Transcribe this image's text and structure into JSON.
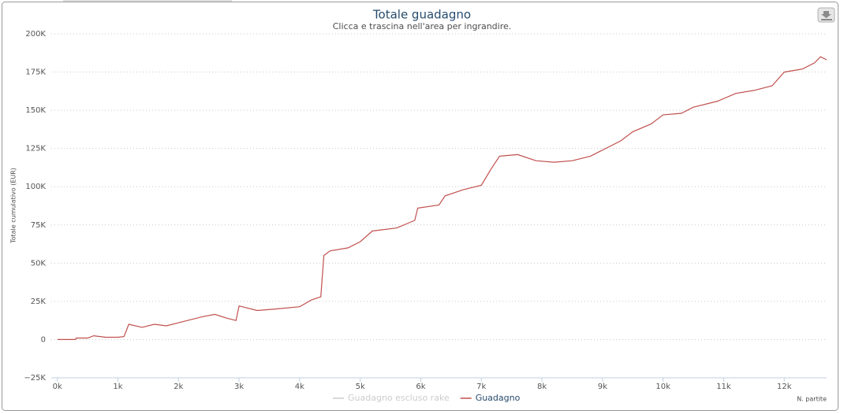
{
  "chart_data": {
    "type": "line",
    "title": "Totale guadagno",
    "subtitle": "Clicca e trascina nell'area per ingrandire.",
    "y_label": "Totale cumulativo (EUR)",
    "x_label": "N. partite",
    "x": [
      0,
      300,
      310,
      500,
      600,
      800,
      1000,
      1100,
      1180,
      1400,
      1600,
      1800,
      2000,
      2200,
      2400,
      2600,
      2800,
      2950,
      3000,
      3300,
      3600,
      4000,
      4200,
      4350,
      4400,
      4500,
      4800,
      5000,
      5200,
      5600,
      5900,
      5950,
      6300,
      6400,
      6700,
      7000,
      7150,
      7300,
      7600,
      7900,
      8200,
      8500,
      8800,
      9000,
      9300,
      9500,
      9800,
      10000,
      10300,
      10500,
      10900,
      11200,
      11500,
      11800,
      12000,
      12300,
      12500,
      12600,
      12700
    ],
    "series": [
      {
        "name": "Guadagno escluso rake",
        "color": "#cccccc",
        "visible": false,
        "values": [
          null,
          null,
          null,
          null,
          null,
          null,
          null,
          null,
          null,
          null,
          null,
          null,
          null,
          null,
          null,
          null,
          null,
          null,
          null,
          null,
          null,
          null,
          null,
          null,
          null,
          null,
          null,
          null,
          null,
          null,
          null,
          null,
          null,
          null,
          null,
          null,
          null,
          null,
          null,
          null,
          null,
          null,
          null,
          null,
          null,
          null,
          null,
          null,
          null,
          null,
          null,
          null,
          null,
          null,
          null,
          null,
          null,
          null,
          null
        ]
      },
      {
        "name": "Guadagno",
        "color": "#c0504d",
        "visible": true,
        "values": [
          0,
          0,
          1000,
          1000,
          2500,
          1500,
          1500,
          2000,
          10000,
          8000,
          10000,
          9000,
          11000,
          13000,
          15000,
          16500,
          14000,
          12500,
          22000,
          19000,
          20000,
          21500,
          26000,
          28000,
          55000,
          58000,
          60000,
          64000,
          71000,
          73000,
          78000,
          86000,
          88000,
          94000,
          98000,
          101000,
          111000,
          120000,
          121000,
          117000,
          116000,
          117000,
          120000,
          124000,
          130000,
          136000,
          141000,
          147000,
          148000,
          152000,
          156000,
          161000,
          163000,
          166000,
          175000,
          177000,
          181000,
          185000,
          183000
        ]
      }
    ],
    "xlim": [
      -100,
      12700
    ],
    "ylim": [
      -25000,
      200000
    ],
    "xticks": [
      {
        "value": 0,
        "label": "0k"
      },
      {
        "value": 1000,
        "label": "1k"
      },
      {
        "value": 2000,
        "label": "2k"
      },
      {
        "value": 3000,
        "label": "3k"
      },
      {
        "value": 4000,
        "label": "4k"
      },
      {
        "value": 5000,
        "label": "5k"
      },
      {
        "value": 6000,
        "label": "6k"
      },
      {
        "value": 7000,
        "label": "7k"
      },
      {
        "value": 8000,
        "label": "8k"
      },
      {
        "value": 9000,
        "label": "9k"
      },
      {
        "value": 10000,
        "label": "10k"
      },
      {
        "value": 11000,
        "label": "11k"
      },
      {
        "value": 12000,
        "label": "12k"
      }
    ],
    "yticks": [
      {
        "value": -25000,
        "label": "−25K"
      },
      0,
      {
        "value": 25000,
        "label": "25K"
      },
      {
        "value": 50000,
        "label": "50K"
      },
      {
        "value": 75000,
        "label": "75K"
      },
      {
        "value": 100000,
        "label": "100K"
      },
      {
        "value": 125000,
        "label": "125K"
      },
      {
        "value": 150000,
        "label": "150K"
      },
      {
        "value": 175000,
        "label": "175K"
      },
      {
        "value": 200000,
        "label": "200K"
      }
    ],
    "grid": true
  }
}
